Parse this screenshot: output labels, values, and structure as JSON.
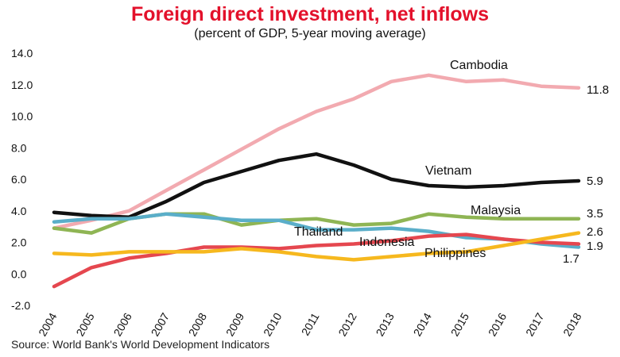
{
  "chart_data": {
    "type": "line",
    "title": "Foreign direct investment, net inflows",
    "subtitle": "(percent of GDP, 5-year moving average)",
    "source": "Source: World Bank's World Development Indicators",
    "x": [
      "2004",
      "2005",
      "2006",
      "2007",
      "2008",
      "2009",
      "2010",
      "2011",
      "2012",
      "2013",
      "2014",
      "2015",
      "2016",
      "2017",
      "2018"
    ],
    "ylim": [
      -2.0,
      14.0
    ],
    "yticks": [
      "14.0",
      "12.0",
      "10.0",
      "8.0",
      "6.0",
      "4.0",
      "2.0",
      "0.0",
      "-2.0"
    ],
    "grid": false,
    "series": [
      {
        "name": "Cambodia",
        "color": "#f2aab0",
        "end_label": "11.8",
        "values": [
          2.9,
          3.4,
          4.0,
          5.3,
          6.6,
          7.9,
          9.2,
          10.3,
          11.1,
          12.2,
          12.6,
          12.2,
          12.3,
          11.9,
          11.8
        ]
      },
      {
        "name": "Vietnam",
        "color": "#111111",
        "end_label": "5.9",
        "values": [
          3.9,
          3.7,
          3.6,
          4.6,
          5.8,
          6.5,
          7.2,
          7.6,
          6.9,
          6.0,
          5.6,
          5.5,
          5.6,
          5.8,
          5.9
        ]
      },
      {
        "name": "Malaysia",
        "color": "#8fb554",
        "end_label": "3.5",
        "values": [
          2.9,
          2.6,
          3.5,
          3.8,
          3.8,
          3.1,
          3.4,
          3.5,
          3.1,
          3.2,
          3.8,
          3.6,
          3.5,
          3.5,
          3.5
        ]
      },
      {
        "name": "Thailand",
        "color": "#5aaec9",
        "end_label": "1.7",
        "values": [
          3.3,
          3.5,
          3.5,
          3.8,
          3.6,
          3.4,
          3.4,
          2.8,
          2.8,
          2.9,
          2.7,
          2.3,
          2.2,
          1.9,
          1.7
        ]
      },
      {
        "name": "Indonesia",
        "color": "#e5474f",
        "end_label": "1.9",
        "values": [
          -0.8,
          0.4,
          1.0,
          1.3,
          1.7,
          1.7,
          1.6,
          1.8,
          1.9,
          2.1,
          2.4,
          2.5,
          2.2,
          2.0,
          1.9
        ]
      },
      {
        "name": "Philippines",
        "color": "#f6b81e",
        "end_label": "2.6",
        "values": [
          1.3,
          1.2,
          1.4,
          1.4,
          1.4,
          1.6,
          1.4,
          1.1,
          0.9,
          1.1,
          1.3,
          1.4,
          1.8,
          2.2,
          2.6
        ]
      }
    ]
  }
}
